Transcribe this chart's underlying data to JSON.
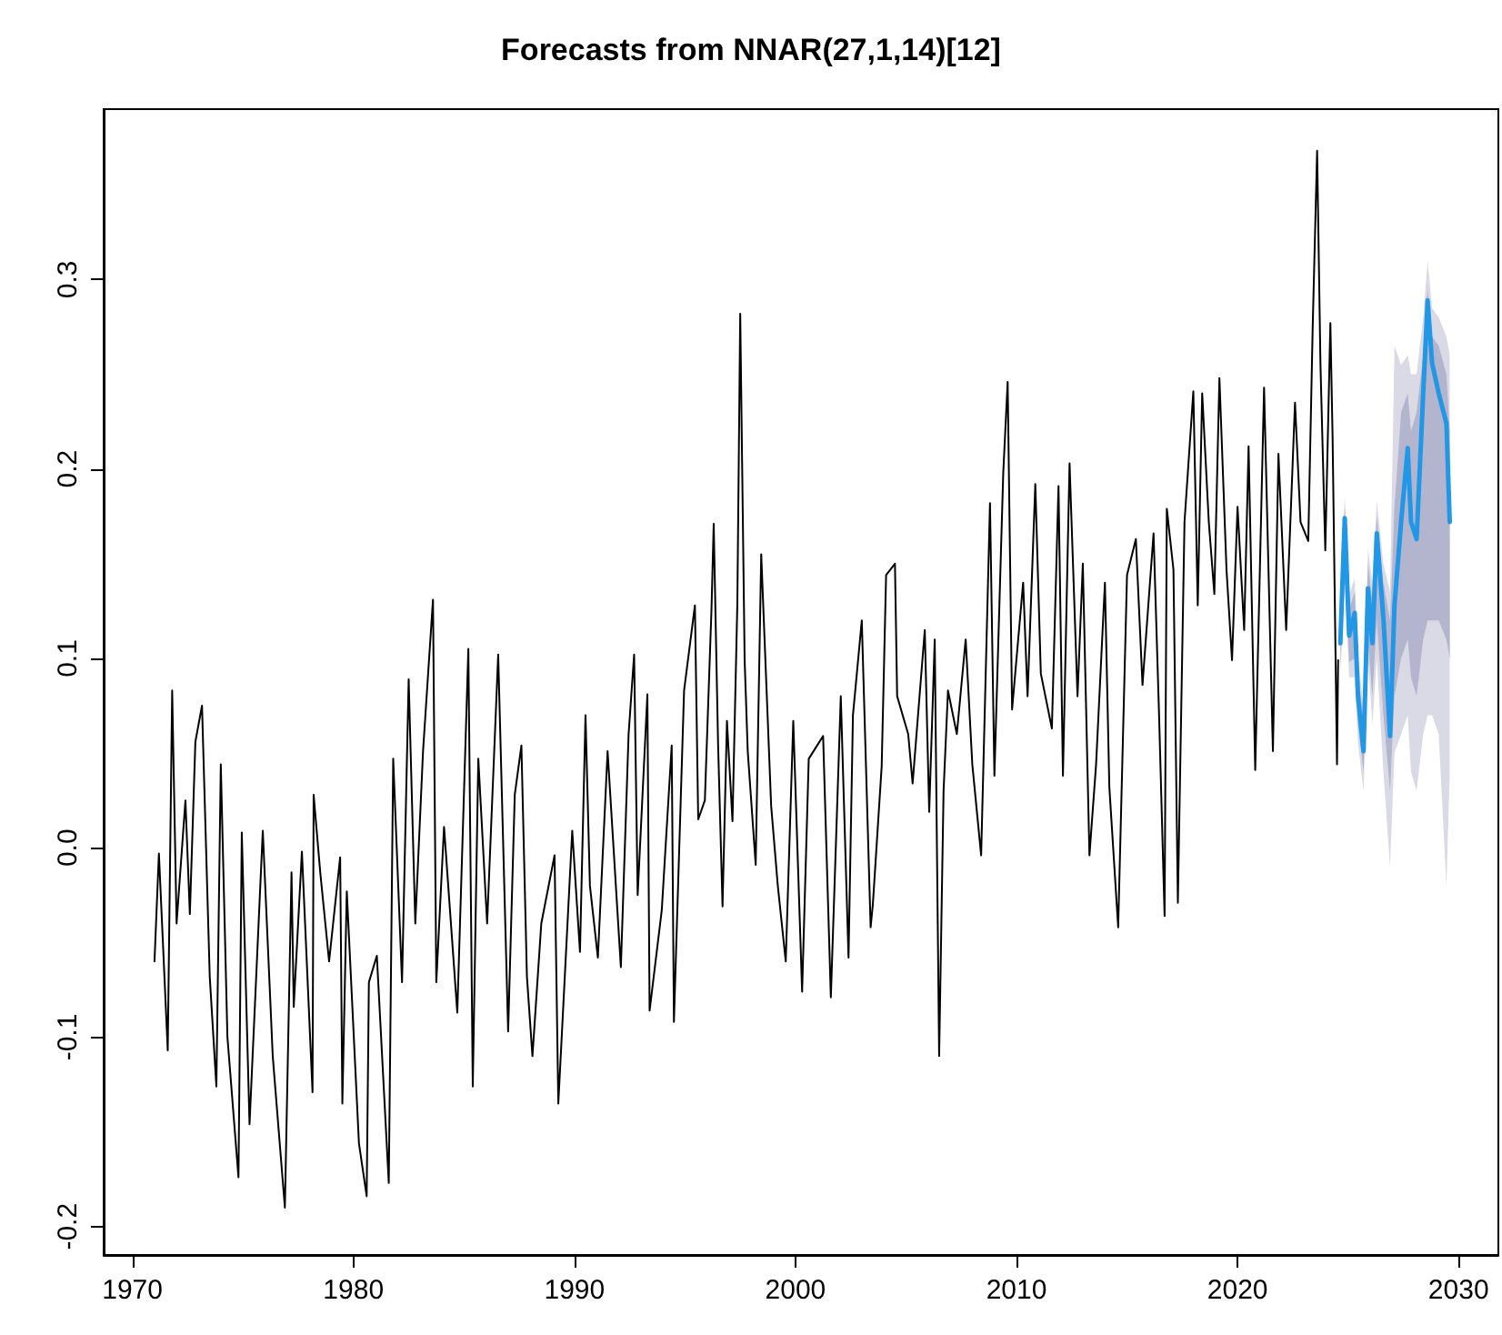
{
  "chart_data": {
    "type": "line",
    "title": "Forecasts from NNAR(27,1,14)[12]",
    "xlim": [
      1968.7,
      2031.8
    ],
    "xticks": [
      1970,
      1980,
      1990,
      2000,
      2010,
      2020,
      2030
    ],
    "ylim": [
      -0.215,
      0.39
    ],
    "yticks": [
      -0.2,
      -0.1,
      {
        "value": 0,
        "label": "0.0"
      },
      0.1,
      0.2,
      0.3
    ],
    "series": [
      {
        "color": "#000000",
        "x": [
          1971.0,
          1971.2,
          1971.6,
          1971.8,
          1972.0,
          1972.4,
          1972.6,
          1972.85,
          1973.15,
          1973.5,
          1973.8,
          1974.0,
          1974.3,
          1974.8,
          1974.95,
          1975.3,
          1975.9,
          1976.35,
          1976.9,
          1977.2,
          1977.3,
          1977.67,
          1978.15,
          1978.2,
          1978.5,
          1978.9,
          1979.4,
          1979.5,
          1979.7,
          1980.25,
          1980.6,
          1980.7,
          1981.06,
          1981.6,
          1981.8,
          1982.2,
          1982.5,
          1982.8,
          1983.15,
          1983.6,
          1983.75,
          1984.1,
          1984.7,
          1985.2,
          1985.4,
          1985.65,
          1986.05,
          1986.55,
          1987.0,
          1987.3,
          1987.6,
          1987.85,
          1988.1,
          1988.5,
          1989.1,
          1989.27,
          1989.9,
          1990.25,
          1990.5,
          1990.7,
          1991.06,
          1991.5,
          1992.1,
          1992.45,
          1992.7,
          1992.86,
          1993.3,
          1993.4,
          1993.95,
          1994.4,
          1994.5,
          1994.96,
          1995.45,
          1995.6,
          1995.9,
          1996.2,
          1996.3,
          1996.5,
          1996.7,
          1996.9,
          1997.15,
          1997.37,
          1997.5,
          1997.7,
          1997.84,
          1998.2,
          1998.45,
          1998.9,
          1999.2,
          1999.56,
          1999.9,
          2000.3,
          2000.6,
          2001.25,
          2001.6,
          2002.05,
          2002.4,
          2002.6,
          2003.0,
          2003.4,
          2003.5,
          2003.9,
          2004.1,
          2004.5,
          2004.6,
          2005.1,
          2005.3,
          2005.85,
          2006.05,
          2006.3,
          2006.5,
          2006.7,
          2006.9,
          2007.3,
          2007.7,
          2008.0,
          2008.4,
          2008.8,
          2009.0,
          2009.4,
          2009.6,
          2009.8,
          2010.3,
          2010.5,
          2010.85,
          2011.1,
          2011.6,
          2011.9,
          2012.1,
          2012.4,
          2012.76,
          2013.0,
          2013.3,
          2013.6,
          2014.0,
          2014.2,
          2014.6,
          2015.0,
          2015.4,
          2015.7,
          2016.2,
          2016.45,
          2016.7,
          2016.8,
          2017.1,
          2017.3,
          2017.6,
          2018.0,
          2018.2,
          2018.4,
          2018.7,
          2018.95,
          2019.18,
          2019.5,
          2019.75,
          2020.0,
          2020.3,
          2020.5,
          2020.8,
          2021.2,
          2021.6,
          2021.85,
          2022.2,
          2022.6,
          2022.85,
          2023.2,
          2023.4,
          2023.6,
          2023.75,
          2023.97,
          2024.2,
          2024.3,
          2024.5,
          2024.55
        ],
        "values": [
          -0.06,
          -0.003,
          -0.107,
          0.083,
          -0.04,
          0.025,
          -0.035,
          0.056,
          0.075,
          -0.068,
          -0.126,
          0.044,
          -0.1,
          -0.174,
          0.008,
          -0.146,
          0.009,
          -0.11,
          -0.19,
          -0.013,
          -0.084,
          -0.002,
          -0.129,
          0.028,
          -0.013,
          -0.06,
          -0.005,
          -0.135,
          -0.023,
          -0.156,
          -0.184,
          -0.071,
          -0.057,
          -0.177,
          0.047,
          -0.071,
          0.089,
          -0.04,
          0.051,
          0.131,
          -0.071,
          0.011,
          -0.087,
          0.105,
          -0.126,
          0.047,
          -0.04,
          0.102,
          -0.097,
          0.028,
          0.054,
          -0.068,
          -0.11,
          -0.04,
          -0.004,
          -0.135,
          0.009,
          -0.055,
          0.07,
          -0.02,
          -0.058,
          0.051,
          -0.063,
          0.06,
          0.102,
          -0.025,
          0.081,
          -0.086,
          -0.033,
          0.054,
          -0.092,
          0.083,
          0.128,
          0.015,
          0.025,
          0.126,
          0.171,
          0.054,
          -0.031,
          0.067,
          0.014,
          0.129,
          0.282,
          0.099,
          0.051,
          -0.009,
          0.155,
          0.022,
          -0.02,
          -0.06,
          0.067,
          -0.076,
          0.047,
          0.059,
          -0.079,
          0.08,
          -0.058,
          0.07,
          0.12,
          -0.042,
          -0.03,
          0.043,
          0.144,
          0.15,
          0.08,
          0.06,
          0.034,
          0.115,
          0.019,
          0.11,
          -0.11,
          0.03,
          0.083,
          0.06,
          0.11,
          0.044,
          -0.004,
          0.182,
          0.038,
          0.198,
          0.246,
          0.073,
          0.14,
          0.08,
          0.192,
          0.092,
          0.063,
          0.191,
          0.038,
          0.203,
          0.08,
          0.15,
          -0.004,
          0.044,
          0.14,
          0.032,
          -0.042,
          0.144,
          0.163,
          0.086,
          0.166,
          0.07,
          -0.036,
          0.179,
          0.147,
          -0.029,
          0.172,
          0.241,
          0.128,
          0.24,
          0.172,
          0.134,
          0.248,
          0.147,
          0.099,
          0.18,
          0.115,
          0.212,
          0.041,
          0.243,
          0.051,
          0.208,
          0.115,
          0.235,
          0.172,
          0.162,
          0.275,
          0.368,
          0.256,
          0.157,
          0.277,
          0.217,
          0.044,
          0.099
        ]
      },
      {
        "color": "#dadae6",
        "x": [
          2024.65,
          2024.85,
          2025.05,
          2025.3,
          2025.45,
          2025.7,
          2025.9,
          2026.1,
          2026.3,
          2026.6,
          2026.9,
          2027.1,
          2027.4,
          2027.7,
          2027.85,
          2028.1,
          2028.4,
          2028.6,
          2028.8,
          2029.1,
          2029.45,
          2029.6
        ],
        "values": [
          null,
          null,
          null,
          null,
          null,
          null,
          null,
          null,
          null,
          null,
          null,
          null,
          null,
          null,
          null,
          null,
          null,
          null,
          null,
          null,
          null,
          null
        ],
        "lower": [
          0.09,
          0.14,
          0.09,
          0.09,
          0.055,
          0.03,
          0.1,
          0.065,
          0.1,
          0.04,
          -0.01,
          0.05,
          0.06,
          0.07,
          0.04,
          0.03,
          0.06,
          0.07,
          0.07,
          0.06,
          -0.02,
          0.04
        ],
        "upper": [
          0.128,
          0.186,
          0.134,
          0.142,
          0.102,
          0.072,
          0.158,
          0.14,
          0.183,
          0.15,
          0.135,
          0.265,
          0.255,
          0.26,
          0.25,
          0.25,
          0.28,
          0.31,
          0.285,
          0.28,
          0.27,
          0.26
        ]
      },
      {
        "color": "#b3b5cf",
        "x": [
          2024.65,
          2024.85,
          2025.05,
          2025.3,
          2025.45,
          2025.7,
          2025.9,
          2026.1,
          2026.3,
          2026.6,
          2026.9,
          2027.1,
          2027.4,
          2027.7,
          2027.85,
          2028.1,
          2028.4,
          2028.6,
          2028.8,
          2029.1,
          2029.45,
          2029.6
        ],
        "values": [
          null,
          null,
          null,
          null,
          null,
          null,
          null,
          null,
          null,
          null,
          null,
          null,
          null,
          null,
          null,
          null,
          null,
          null,
          null,
          null,
          null,
          null
        ],
        "lower": [
          0.098,
          0.15,
          0.098,
          0.1,
          0.065,
          0.04,
          0.11,
          0.08,
          0.12,
          0.07,
          0.03,
          0.08,
          0.1,
          0.11,
          0.09,
          0.08,
          0.11,
          0.12,
          0.12,
          0.12,
          0.11,
          0.1
        ],
        "upper": [
          0.12,
          0.18,
          0.126,
          0.135,
          0.095,
          0.065,
          0.15,
          0.13,
          0.175,
          0.14,
          0.12,
          0.18,
          0.23,
          0.24,
          0.22,
          0.23,
          0.26,
          0.295,
          0.27,
          0.265,
          0.25,
          0.22
        ]
      },
      {
        "color": "#2297e6",
        "x": [
          2024.65,
          2024.85,
          2025.05,
          2025.3,
          2025.45,
          2025.7,
          2025.9,
          2026.1,
          2026.3,
          2026.6,
          2026.9,
          2027.1,
          2027.4,
          2027.7,
          2027.85,
          2028.1,
          2028.4,
          2028.6,
          2028.8,
          2029.1,
          2029.45,
          2029.6
        ],
        "values": [
          0.108,
          0.174,
          0.112,
          0.124,
          0.08,
          0.051,
          0.137,
          0.108,
          0.166,
          0.121,
          0.059,
          0.128,
          0.172,
          0.211,
          0.172,
          0.163,
          0.24,
          0.289,
          0.256,
          0.24,
          0.224,
          0.172
        ]
      }
    ]
  }
}
